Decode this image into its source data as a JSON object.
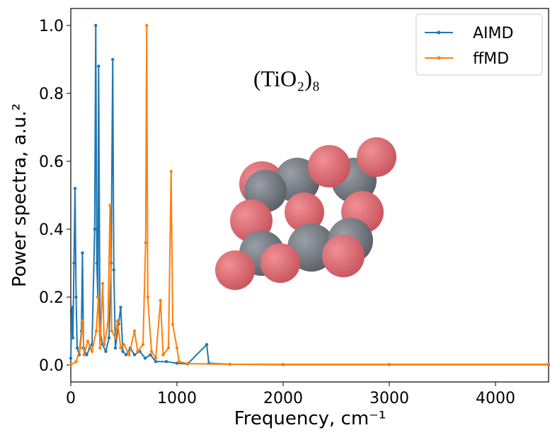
{
  "chart_data": {
    "type": "line",
    "annotation": "(TiO₂)₈",
    "xlabel": "Frequency, cm⁻¹",
    "ylabel": "Power spectra, a.u.²",
    "xlim": [
      0,
      4500
    ],
    "ylim": [
      -0.05,
      1.05
    ],
    "xticks": [
      0,
      1000,
      2000,
      3000,
      4000
    ],
    "yticks": [
      {
        "value": 0,
        "label": "0.0"
      },
      0.2,
      0.4,
      0.6,
      0.8,
      {
        "value": 1,
        "label": "1.0"
      }
    ],
    "legend": "upper right",
    "series": [
      {
        "name": "AIMD",
        "color": "#1f77b4",
        "x": [
          0,
          10,
          20,
          30,
          40,
          50,
          60,
          80,
          100,
          110,
          120,
          150,
          180,
          200,
          225,
          235,
          245,
          255,
          262,
          275,
          300,
          330,
          360,
          380,
          395,
          405,
          420,
          450,
          470,
          490,
          520,
          560,
          600,
          650,
          700,
          750,
          800,
          900,
          1000,
          1100,
          1280,
          1300,
          1500,
          2000,
          3000,
          4500
        ],
        "values": [
          0.02,
          0.17,
          0.08,
          0.3,
          0.52,
          0.2,
          0.05,
          0.03,
          0.1,
          0.33,
          0.05,
          0.03,
          0.05,
          0.06,
          0.4,
          1.0,
          0.3,
          0.2,
          0.88,
          0.1,
          0.06,
          0.04,
          0.08,
          0.3,
          0.9,
          0.28,
          0.05,
          0.12,
          0.17,
          0.04,
          0.03,
          0.05,
          0.03,
          0.04,
          0.02,
          0.03,
          0.01,
          0.01,
          0.005,
          0.003,
          0.06,
          0.005,
          0.002,
          0.001,
          0.001,
          0.001
        ]
      },
      {
        "name": "ffMD",
        "color": "#ff7f0e",
        "x": [
          0,
          50,
          90,
          110,
          125,
          160,
          200,
          240,
          260,
          275,
          300,
          315,
          350,
          370,
          385,
          420,
          440,
          470,
          500,
          550,
          600,
          630,
          680,
          705,
          715,
          725,
          760,
          800,
          845,
          870,
          920,
          945,
          960,
          1000,
          1020,
          1100,
          1500,
          2000,
          3000,
          4500
        ],
        "values": [
          0.0,
          0.01,
          0.05,
          0.13,
          0.03,
          0.07,
          0.04,
          0.1,
          0.2,
          0.05,
          0.24,
          0.06,
          0.12,
          0.47,
          0.1,
          0.08,
          0.13,
          0.05,
          0.06,
          0.03,
          0.1,
          0.04,
          0.06,
          0.36,
          1.0,
          0.2,
          0.04,
          0.02,
          0.19,
          0.03,
          0.05,
          0.57,
          0.12,
          0.05,
          0.01,
          0.004,
          0.002,
          0.002,
          0.002,
          0.002
        ]
      }
    ]
  }
}
